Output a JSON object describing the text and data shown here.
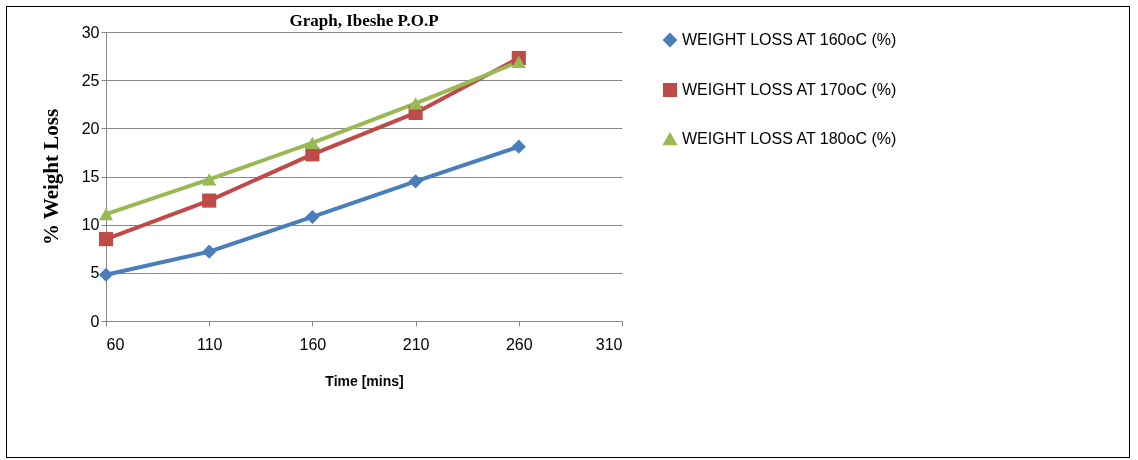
{
  "chart_data": {
    "type": "line",
    "title": "Graph, Ibeshe P.O.P",
    "xlabel": "Time [mins]",
    "ylabel": "%  Weight Loss",
    "x": [
      60,
      110,
      160,
      210,
      260
    ],
    "series": [
      {
        "name": "WEIGHT LOSS AT 160oC (%)",
        "color": "#4a7ebb",
        "marker": "diamond",
        "values": [
          4.8,
          7.2,
          10.8,
          14.5,
          18.1
        ]
      },
      {
        "name": "WEIGHT LOSS AT 170oC (%)",
        "color": "#be4b48",
        "marker": "square",
        "values": [
          8.5,
          12.5,
          17.3,
          21.6,
          27.3
        ]
      },
      {
        "name": "WEIGHT LOSS AT 180oC (%)",
        "color": "#98b954",
        "marker": "triangle",
        "values": [
          11.1,
          14.7,
          18.5,
          22.6,
          26.9
        ]
      }
    ],
    "xlim": [
      60,
      310
    ],
    "xticks": [
      60,
      110,
      160,
      210,
      260,
      310
    ],
    "ylim": [
      0,
      30
    ],
    "yticks": [
      0,
      5,
      10,
      15,
      20,
      25,
      30
    ],
    "grid": "y",
    "legend": "right",
    "line_style": "solid"
  }
}
